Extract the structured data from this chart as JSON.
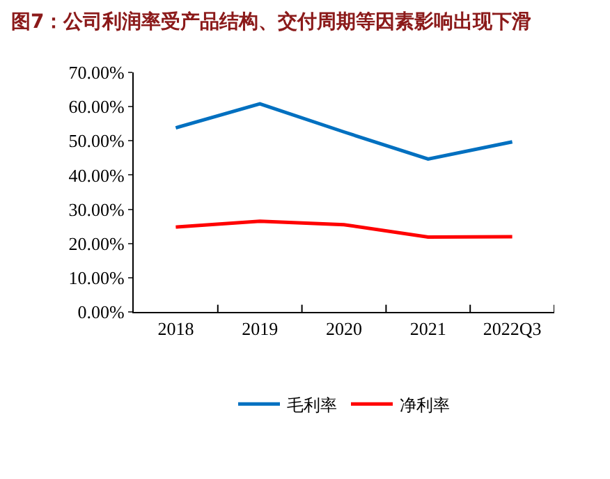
{
  "chart_data": {
    "type": "line",
    "title": "图7：公司利润率受产品结构、交付周期等因素影响出现下滑",
    "categories": [
      "2018",
      "2019",
      "2020",
      "2021",
      "2022Q3"
    ],
    "series": [
      {
        "name": "毛利率",
        "color": "#0070c0",
        "values": [
          53.8,
          60.8,
          52.6,
          44.7,
          49.7
        ]
      },
      {
        "name": "净利率",
        "color": "#ff0000",
        "values": [
          24.8,
          26.5,
          25.5,
          21.9,
          22.0
        ]
      }
    ],
    "ylim": [
      0,
      70
    ],
    "yticks": [
      {
        "value": 0,
        "label": "0.00%"
      },
      {
        "value": 10,
        "label": "10.00%"
      },
      {
        "value": 20,
        "label": "20.00%"
      },
      {
        "value": 30,
        "label": "30.00%"
      },
      {
        "value": 40,
        "label": "40.00%"
      },
      {
        "value": 50,
        "label": "50.00%"
      },
      {
        "value": 60,
        "label": "60.00%"
      },
      {
        "value": 70,
        "label": "70.00%"
      }
    ],
    "grid": false,
    "legend": "bottom",
    "marker": "none",
    "line_style": "solid"
  }
}
